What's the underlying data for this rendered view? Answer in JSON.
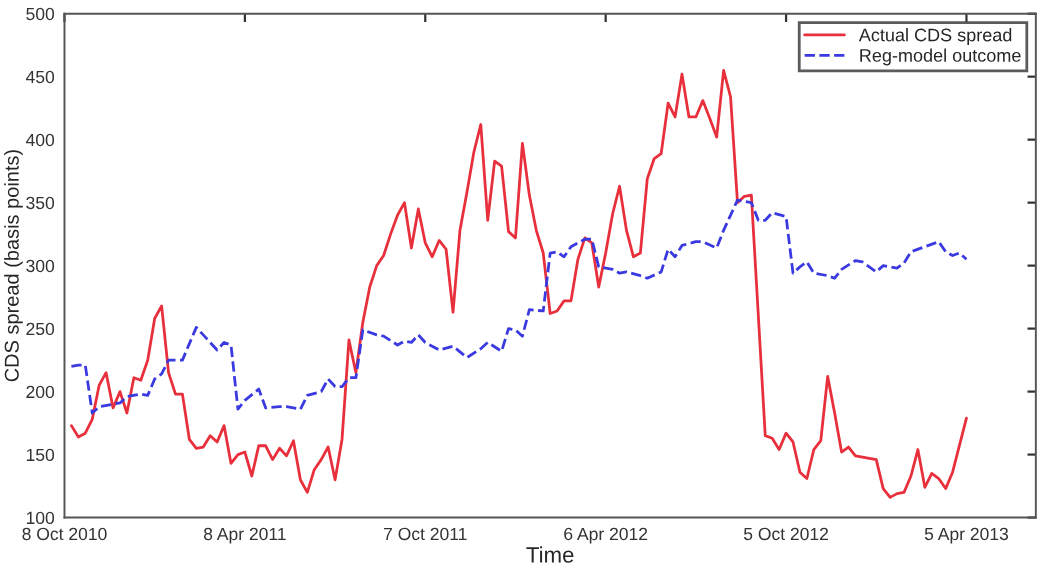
{
  "chart_data": {
    "type": "line",
    "xlabel": "Time",
    "ylabel": "CDS spread (basis points)",
    "xlim": [
      "2010-10-08",
      "2013-06-14"
    ],
    "xticks": [
      {
        "value": "2010-10-08",
        "label": "8 Oct 2010"
      },
      {
        "value": "2011-04-08",
        "label": "8 Apr 2011"
      },
      {
        "value": "2011-10-07",
        "label": "7 Oct 2011"
      },
      {
        "value": "2012-04-06",
        "label": "6 Apr 2012"
      },
      {
        "value": "2012-10-05",
        "label": "5 Oct 2012"
      },
      {
        "value": "2013-04-05",
        "label": "5 Apr 2013"
      }
    ],
    "ylim": [
      100,
      500
    ],
    "yticks": [
      100,
      150,
      200,
      250,
      300,
      350,
      400,
      450,
      500
    ],
    "grid": false,
    "legend": "top right",
    "series": [
      {
        "name": "Actual CDS spread",
        "color": "#e8303c",
        "line_style": "solid",
        "x": [
          "2010-10-15",
          "2010-10-22",
          "2010-10-29",
          "2010-11-05",
          "2010-11-12",
          "2010-11-19",
          "2010-11-26",
          "2010-12-03",
          "2010-12-10",
          "2010-12-17",
          "2010-12-24",
          "2010-12-31",
          "2011-01-07",
          "2011-01-14",
          "2011-01-21",
          "2011-01-28",
          "2011-02-04",
          "2011-02-11",
          "2011-02-18",
          "2011-02-25",
          "2011-03-04",
          "2011-03-11",
          "2011-03-18",
          "2011-03-25",
          "2011-04-01",
          "2011-04-08",
          "2011-04-15",
          "2011-04-22",
          "2011-04-29",
          "2011-05-06",
          "2011-05-13",
          "2011-05-20",
          "2011-05-27",
          "2011-06-03",
          "2011-06-10",
          "2011-06-17",
          "2011-06-24",
          "2011-07-01",
          "2011-07-08",
          "2011-07-15",
          "2011-07-22",
          "2011-07-29",
          "2011-08-05",
          "2011-08-12",
          "2011-08-19",
          "2011-08-26",
          "2011-09-02",
          "2011-09-09",
          "2011-09-16",
          "2011-09-23",
          "2011-09-30",
          "2011-10-07",
          "2011-10-14",
          "2011-10-21",
          "2011-10-28",
          "2011-11-04",
          "2011-11-11",
          "2011-11-18",
          "2011-11-25",
          "2011-12-02",
          "2011-12-09",
          "2011-12-16",
          "2011-12-23",
          "2011-12-30",
          "2012-01-06",
          "2012-01-13",
          "2012-01-20",
          "2012-01-27",
          "2012-02-03",
          "2012-02-10",
          "2012-02-17",
          "2012-02-24",
          "2012-03-02",
          "2012-03-09",
          "2012-03-16",
          "2012-03-23",
          "2012-03-30",
          "2012-04-06",
          "2012-04-13",
          "2012-04-20",
          "2012-04-27",
          "2012-05-04",
          "2012-05-11",
          "2012-05-18",
          "2012-05-25",
          "2012-06-01",
          "2012-06-08",
          "2012-06-15",
          "2012-06-22",
          "2012-06-29",
          "2012-07-06",
          "2012-07-13",
          "2012-07-20",
          "2012-07-27",
          "2012-08-03",
          "2012-08-10",
          "2012-08-17",
          "2012-08-24",
          "2012-08-31",
          "2012-09-14",
          "2012-09-21",
          "2012-09-28",
          "2012-10-05",
          "2012-10-12",
          "2012-10-19",
          "2012-10-26",
          "2012-11-02",
          "2012-11-09",
          "2012-11-16",
          "2012-11-23",
          "2012-11-30",
          "2012-12-07",
          "2012-12-14",
          "2012-12-28",
          "2013-01-04",
          "2013-01-11",
          "2013-01-18",
          "2013-01-25",
          "2013-02-01",
          "2013-02-08",
          "2013-02-15",
          "2013-02-22",
          "2013-03-01",
          "2013-03-08",
          "2013-03-15",
          "2013-03-22",
          "2013-04-05"
        ],
        "values": [
          173,
          164,
          167,
          178,
          205,
          215,
          187,
          200,
          183,
          211,
          209,
          225,
          258,
          268,
          215,
          198,
          198,
          162,
          155,
          156,
          165,
          160,
          173,
          143,
          150,
          152,
          133,
          157,
          157,
          146,
          155,
          149,
          161,
          130,
          120,
          138,
          146,
          156,
          130,
          162,
          241,
          215,
          255,
          283,
          300,
          308,
          325,
          340,
          350,
          314,
          345,
          318,
          307,
          320,
          313,
          263,
          328,
          358,
          390,
          412,
          336,
          383,
          379,
          327,
          322,
          397,
          356,
          328,
          310,
          262,
          264,
          272,
          272,
          305,
          322,
          318,
          283,
          310,
          341,
          363,
          328,
          307,
          310,
          369,
          385,
          389,
          429,
          418,
          452,
          418,
          418,
          431,
          417,
          402,
          455,
          434,
          350,
          355,
          356,
          165,
          163,
          154,
          167,
          160,
          136,
          131,
          154,
          161,
          212,
          183,
          152,
          156,
          149,
          147,
          146,
          123,
          116,
          119,
          120,
          133,
          154,
          124,
          135,
          131,
          123,
          136,
          179
        ]
      },
      {
        "name": "Reg-model outcome",
        "color": "#3a3ae0",
        "line_style": "dashed",
        "x": [
          "2010-10-15",
          "2010-10-22",
          "2010-10-29",
          "2010-11-05",
          "2010-11-12",
          "2010-11-26",
          "2010-12-03",
          "2010-12-10",
          "2010-12-24",
          "2010-12-31",
          "2011-01-07",
          "2011-01-14",
          "2011-01-21",
          "2011-02-04",
          "2011-02-18",
          "2011-02-25",
          "2011-03-11",
          "2011-03-18",
          "2011-03-25",
          "2011-04-01",
          "2011-04-08",
          "2011-04-22",
          "2011-04-29",
          "2011-05-13",
          "2011-05-20",
          "2011-06-03",
          "2011-06-10",
          "2011-06-24",
          "2011-07-01",
          "2011-07-08",
          "2011-07-15",
          "2011-07-22",
          "2011-07-29",
          "2011-08-05",
          "2011-08-19",
          "2011-08-26",
          "2011-09-09",
          "2011-09-16",
          "2011-09-23",
          "2011-09-30",
          "2011-10-07",
          "2011-10-21",
          "2011-11-04",
          "2011-11-18",
          "2011-12-02",
          "2011-12-09",
          "2011-12-23",
          "2011-12-30",
          "2012-01-06",
          "2012-01-13",
          "2012-01-20",
          "2012-02-03",
          "2012-02-10",
          "2012-02-17",
          "2012-02-24",
          "2012-03-02",
          "2012-03-16",
          "2012-03-23",
          "2012-03-30",
          "2012-04-13",
          "2012-04-20",
          "2012-04-27",
          "2012-05-11",
          "2012-05-18",
          "2012-06-01",
          "2012-06-08",
          "2012-06-15",
          "2012-06-22",
          "2012-07-06",
          "2012-07-13",
          "2012-07-27",
          "2012-08-03",
          "2012-08-17",
          "2012-08-24",
          "2012-08-31",
          "2012-09-07",
          "2012-09-14",
          "2012-09-21",
          "2012-10-05",
          "2012-10-12",
          "2012-10-19",
          "2012-10-26",
          "2012-11-02",
          "2012-11-16",
          "2012-11-23",
          "2012-11-30",
          "2012-12-14",
          "2012-12-21",
          "2012-12-28",
          "2013-01-04",
          "2013-01-11",
          "2013-01-18",
          "2013-01-25",
          "2013-02-01",
          "2013-02-08",
          "2013-02-22",
          "2013-03-08",
          "2013-03-15",
          "2013-03-22",
          "2013-03-29",
          "2013-04-05"
        ],
        "values": [
          220,
          221,
          221,
          183,
          188,
          190,
          191,
          196,
          198,
          197,
          210,
          214,
          225,
          225,
          251,
          245,
          233,
          239,
          237,
          186,
          193,
          202,
          187,
          188,
          188,
          186,
          197,
          200,
          210,
          204,
          204,
          211,
          211,
          249,
          245,
          244,
          237,
          240,
          239,
          245,
          239,
          233,
          236,
          227,
          234,
          239,
          232,
          250,
          249,
          244,
          265,
          264,
          310,
          311,
          307,
          315,
          321,
          321,
          299,
          297,
          294,
          295,
          292,
          290,
          295,
          313,
          307,
          316,
          319,
          319,
          314,
          328,
          352,
          351,
          350,
          336,
          336,
          342,
          339,
          294,
          299,
          303,
          294,
          292,
          290,
          297,
          304,
          303,
          299,
          295,
          300,
          299,
          298,
          302,
          311,
          315,
          319,
          311,
          308,
          310,
          305
        ]
      }
    ]
  }
}
